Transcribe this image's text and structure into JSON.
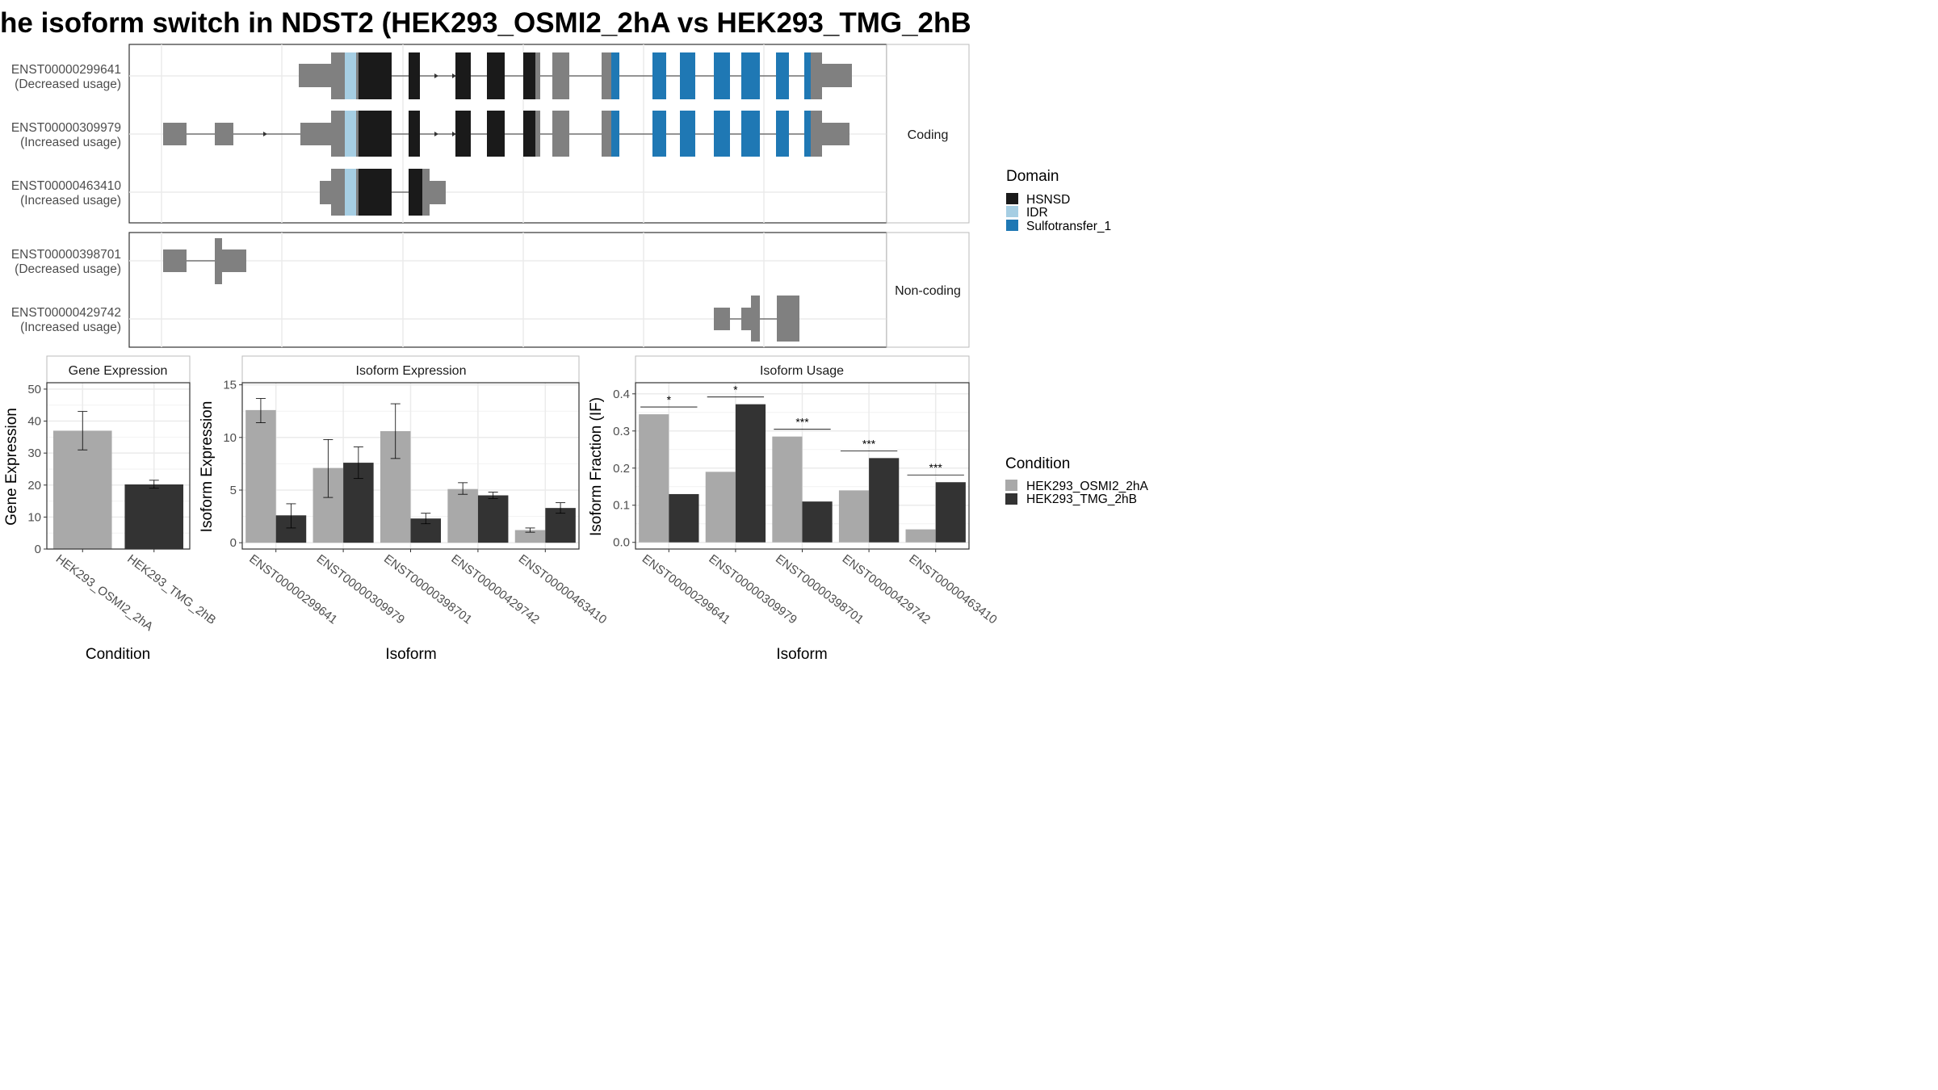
{
  "title": "he isoform switch in NDST2 (HEK293_OSMI2_2hA vs HEK293_TMG_2hB",
  "colors": {
    "cond1": "#A9A9A9",
    "cond2": "#333333",
    "exon": "#808080",
    "HSNSD": "#1A1A1A",
    "IDR": "#A6CEE3",
    "Sulfotransfer_1": "#1F78B4",
    "panel_border": "#333333",
    "strip_border": "#BBBBBB",
    "grid": "#EBEBEB"
  },
  "transcript_panel": {
    "facets": [
      {
        "label": "Coding",
        "transcripts": [
          {
            "id": "ENST00000299641",
            "note": "(Decreased usage)"
          },
          {
            "id": "ENST00000309979",
            "note": "(Increased usage)"
          },
          {
            "id": "ENST00000463410",
            "note": "(Increased usage)"
          }
        ]
      },
      {
        "label": "Non-coding",
        "transcripts": [
          {
            "id": "ENST00000398701",
            "note": "(Decreased usage)"
          },
          {
            "id": "ENST00000429742",
            "note": "(Increased usage)"
          }
        ]
      }
    ]
  },
  "legend_domain": {
    "title": "Domain",
    "items": [
      {
        "label": "HSNSD",
        "color": "#1A1A1A"
      },
      {
        "label": "IDR",
        "color": "#A6CEE3"
      },
      {
        "label": "Sulfotransfer_1",
        "color": "#1F78B4"
      }
    ]
  },
  "legend_condition": {
    "title": "Condition",
    "items": [
      {
        "label": "HEK293_OSMI2_2hA",
        "color": "#A9A9A9"
      },
      {
        "label": "HEK293_TMG_2hB",
        "color": "#333333"
      }
    ]
  },
  "chart_data": [
    {
      "type": "bar",
      "strip": "Gene Expression",
      "xlabel": "Condition",
      "ylabel": "Gene Expression",
      "ylim": [
        0,
        52
      ],
      "yticks": [
        0,
        10,
        20,
        30,
        40,
        50
      ],
      "categories": [
        "HEK293_OSMI2_2hA",
        "HEK293_TMG_2hB"
      ],
      "values": [
        37,
        20.2
      ],
      "errors": [
        [
          31,
          43
        ],
        [
          19,
          21.5
        ]
      ]
    },
    {
      "type": "bar",
      "strip": "Isoform Expression",
      "xlabel": "Isoform",
      "ylabel": "Isoform Expression",
      "ylim": [
        -0.6,
        15.2
      ],
      "yticks": [
        0,
        5,
        10,
        15
      ],
      "categories": [
        "ENST00000299641",
        "ENST00000309979",
        "ENST00000398701",
        "ENST00000429742",
        "ENST00000463410"
      ],
      "series": [
        {
          "name": "HEK293_OSMI2_2hA",
          "values": [
            12.6,
            7.1,
            10.6,
            5.1,
            1.2
          ],
          "errors": [
            [
              11.4,
              13.7
            ],
            [
              4.3,
              9.8
            ],
            [
              8.0,
              13.2
            ],
            [
              4.6,
              5.7
            ],
            [
              1.0,
              1.4
            ]
          ]
        },
        {
          "name": "HEK293_TMG_2hB",
          "values": [
            2.6,
            7.6,
            2.3,
            4.5,
            3.3
          ],
          "errors": [
            [
              1.4,
              3.7
            ],
            [
              6.1,
              9.1
            ],
            [
              1.8,
              2.8
            ],
            [
              4.2,
              4.8
            ],
            [
              2.8,
              3.8
            ]
          ]
        }
      ]
    },
    {
      "type": "bar",
      "strip": "Isoform Usage",
      "xlabel": "Isoform",
      "ylabel": "Isoform Fraction (IF)",
      "ylim": [
        -0.018,
        0.43
      ],
      "yticks": [
        0.0,
        0.1,
        0.2,
        0.3,
        0.4
      ],
      "categories": [
        "ENST00000299641",
        "ENST00000309979",
        "ENST00000398701",
        "ENST00000429742",
        "ENST00000463410"
      ],
      "series": [
        {
          "name": "HEK293_OSMI2_2hA",
          "values": [
            0.345,
            0.19,
            0.285,
            0.14,
            0.035
          ]
        },
        {
          "name": "HEK293_TMG_2hB",
          "values": [
            0.13,
            0.372,
            0.11,
            0.227,
            0.162
          ]
        }
      ],
      "significance": [
        "*",
        "*",
        "***",
        "***",
        "***"
      ]
    }
  ]
}
